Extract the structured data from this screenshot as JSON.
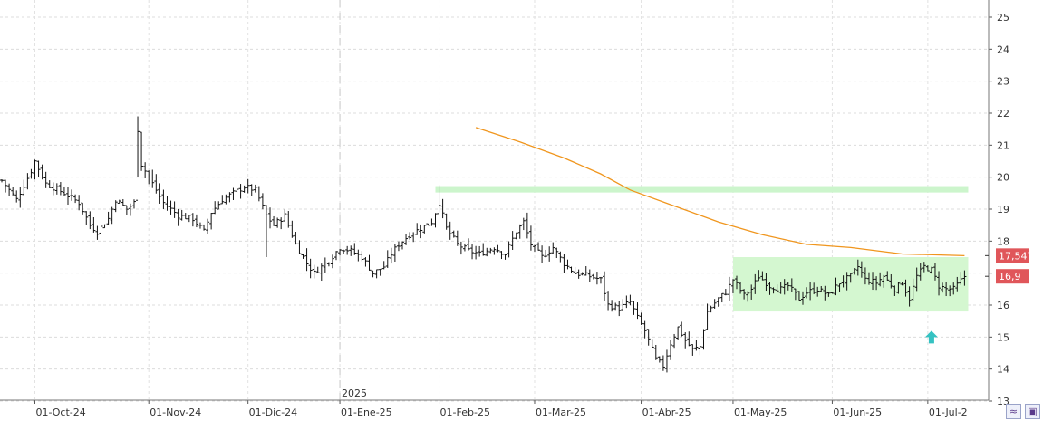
{
  "chart_data": {
    "type": "ohlc",
    "y_axis": {
      "min": 13,
      "max": 25.4,
      "ticks": [
        25,
        24,
        23,
        22,
        21,
        20,
        19,
        18,
        17,
        16,
        15,
        14,
        13
      ],
      "tick_labels": [
        "25",
        "24",
        "23",
        "22",
        "21",
        "20",
        "19",
        "18",
        "17",
        "16",
        "15",
        "14",
        "13"
      ]
    },
    "x_axis": {
      "labels": [
        "01-Oct-24",
        "01-Nov-24",
        "01-Dic-24",
        "01-Ene-25",
        "01-Feb-25",
        "01-Mar-25",
        "01-Abr-25",
        "01-May-25",
        "01-Jun-25",
        "01-Jul-2"
      ],
      "label_bar_index": [
        9,
        40,
        67,
        92,
        119,
        145,
        174,
        199,
        226,
        252
      ],
      "year_label": "2025",
      "year_bar_index": 92
    },
    "bar_count": 263,
    "ohlc_anchors": [
      [
        0,
        19.9
      ],
      [
        4,
        19.3
      ],
      [
        8,
        20.2
      ],
      [
        9,
        20.5
      ],
      [
        12,
        19.8
      ],
      [
        17,
        19.5
      ],
      [
        21,
        19.2
      ],
      [
        24,
        18.5
      ],
      [
        26,
        18.3
      ],
      [
        29,
        18.7
      ],
      [
        31,
        19.3
      ],
      [
        34,
        19.0
      ],
      [
        36,
        19.2
      ],
      [
        37,
        21.5
      ],
      [
        38,
        20.4
      ],
      [
        41,
        19.8
      ],
      [
        44,
        19.2
      ],
      [
        48,
        18.8
      ],
      [
        52,
        18.7
      ],
      [
        55,
        18.3
      ],
      [
        57,
        18.9
      ],
      [
        60,
        19.3
      ],
      [
        63,
        19.5
      ],
      [
        66,
        19.7
      ],
      [
        69,
        19.6
      ],
      [
        72,
        18.8
      ],
      [
        74,
        18.5
      ],
      [
        77,
        18.8
      ],
      [
        80,
        17.9
      ],
      [
        83,
        17.3
      ],
      [
        85,
        17.0
      ],
      [
        89,
        17.4
      ],
      [
        92,
        17.8
      ],
      [
        95,
        17.7
      ],
      [
        98,
        17.5
      ],
      [
        101,
        17.0
      ],
      [
        104,
        17.2
      ],
      [
        106,
        17.6
      ],
      [
        108,
        17.9
      ],
      [
        111,
        18.2
      ],
      [
        114,
        18.4
      ],
      [
        117,
        18.6
      ],
      [
        119,
        19.2
      ],
      [
        121,
        18.4
      ],
      [
        124,
        17.9
      ],
      [
        127,
        17.7
      ],
      [
        130,
        17.6
      ],
      [
        134,
        17.8
      ],
      [
        137,
        17.6
      ],
      [
        140,
        18.3
      ],
      [
        142,
        18.6
      ],
      [
        144,
        17.9
      ],
      [
        147,
        17.5
      ],
      [
        150,
        17.8
      ],
      [
        153,
        17.3
      ],
      [
        156,
        17.0
      ],
      [
        160,
        16.9
      ],
      [
        163,
        16.8
      ],
      [
        165,
        16.0
      ],
      [
        168,
        15.9
      ],
      [
        171,
        16.1
      ],
      [
        173,
        15.6
      ],
      [
        175,
        15.2
      ],
      [
        178,
        14.3
      ],
      [
        180,
        14.1
      ],
      [
        182,
        14.8
      ],
      [
        184,
        15.3
      ],
      [
        186,
        14.9
      ],
      [
        188,
        14.6
      ],
      [
        190,
        14.7
      ],
      [
        192,
        15.8
      ],
      [
        195,
        16.2
      ],
      [
        197,
        16.4
      ],
      [
        199,
        16.8
      ],
      [
        202,
        16.3
      ],
      [
        204,
        16.5
      ],
      [
        206,
        16.9
      ],
      [
        209,
        16.6
      ],
      [
        212,
        16.5
      ],
      [
        214,
        16.6
      ],
      [
        217,
        16.2
      ],
      [
        219,
        16.4
      ],
      [
        222,
        16.5
      ],
      [
        225,
        16.3
      ],
      [
        228,
        16.7
      ],
      [
        231,
        16.9
      ],
      [
        233,
        17.2
      ],
      [
        235,
        16.8
      ],
      [
        238,
        16.7
      ],
      [
        240,
        16.9
      ],
      [
        243,
        16.5
      ],
      [
        245,
        16.7
      ],
      [
        247,
        16.2
      ],
      [
        249,
        16.9
      ],
      [
        251,
        17.2
      ],
      [
        253,
        17.1
      ],
      [
        255,
        16.6
      ],
      [
        257,
        16.5
      ],
      [
        259,
        16.5
      ],
      [
        262,
        16.9
      ]
    ],
    "overlays": {
      "resistance_band": {
        "y_low": 19.52,
        "y_high": 19.72,
        "from_bar": 118,
        "to_bar": 263,
        "color": "#ccf5cc"
      },
      "range_box": {
        "y_low": 15.8,
        "y_high": 17.5,
        "from_bar": 199,
        "to_bar": 263,
        "color": "#d4f7d0"
      },
      "moving_average": {
        "color": "#f0961e",
        "points": [
          [
            129,
            21.55
          ],
          [
            141,
            21.1
          ],
          [
            153,
            20.6
          ],
          [
            163,
            20.1
          ],
          [
            171,
            19.6
          ],
          [
            183,
            19.1
          ],
          [
            195,
            18.6
          ],
          [
            207,
            18.2
          ],
          [
            219,
            17.9
          ],
          [
            231,
            17.8
          ],
          [
            245,
            17.6
          ],
          [
            262,
            17.547
          ]
        ]
      },
      "arrow_marker": {
        "bar": 253,
        "y": 15.0,
        "color": "#35c2c2",
        "direction": "up"
      }
    },
    "value_tags": [
      {
        "label": "17,547",
        "value": 17.547,
        "color": "#e0565a"
      },
      {
        "label": "16,9",
        "value": 16.9,
        "color": "#e0565a"
      }
    ],
    "grid": true,
    "bar_color": "#111111"
  },
  "toolbar": {
    "zoom_icon": "zoom-curve-icon",
    "save_icon": "save-disk-icon"
  }
}
